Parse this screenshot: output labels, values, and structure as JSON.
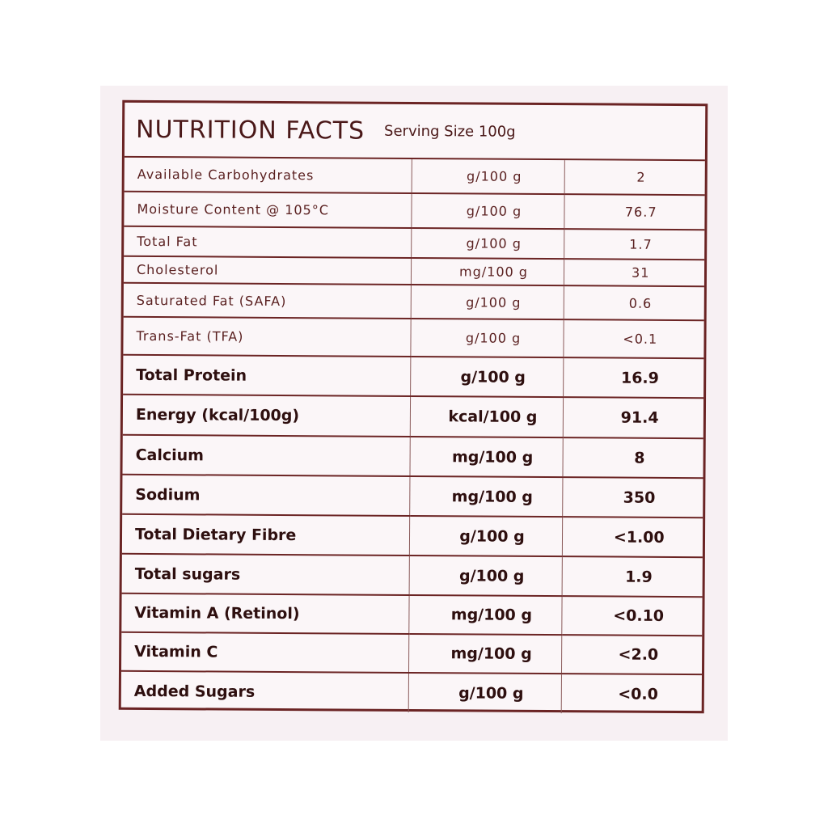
{
  "header": {
    "title": "NUTRITION FACTS",
    "serving": "Serving Size 100g"
  },
  "rows": [
    {
      "name": "Available Carbohydrates",
      "unit": "g/100 g",
      "value": "2"
    },
    {
      "name": "Moisture Content @ 105°C",
      "unit": "g/100 g",
      "value": "76.7"
    },
    {
      "name": "Total Fat",
      "unit": "g/100 g",
      "value": "1.7"
    },
    {
      "name": "Cholesterol",
      "unit": "mg/100 g",
      "value": "31"
    },
    {
      "name": "Saturated Fat (SAFA)",
      "unit": "g/100 g",
      "value": "0.6"
    },
    {
      "name": "Trans-Fat (TFA)",
      "unit": "g/100 g",
      "value": "<0.1"
    },
    {
      "name": "Total Protein",
      "unit": "g/100 g",
      "value": "16.9"
    },
    {
      "name": "Energy (kcal/100g)",
      "unit": "kcal/100 g",
      "value": "91.4"
    },
    {
      "name": "Calcium",
      "unit": "mg/100 g",
      "value": "8"
    },
    {
      "name": "Sodium",
      "unit": "mg/100 g",
      "value": "350"
    },
    {
      "name": "Total Dietary Fibre",
      "unit": "g/100 g",
      "value": "<1.00"
    },
    {
      "name": "Total sugars",
      "unit": "g/100 g",
      "value": "1.9"
    },
    {
      "name": "Vitamin A (Retinol)",
      "unit": "mg/100 g",
      "value": "<0.10"
    },
    {
      "name": "Vitamin C",
      "unit": "mg/100 g",
      "value": "<2.0"
    },
    {
      "name": "Added Sugars",
      "unit": "g/100 g",
      "value": "<0.0"
    }
  ]
}
